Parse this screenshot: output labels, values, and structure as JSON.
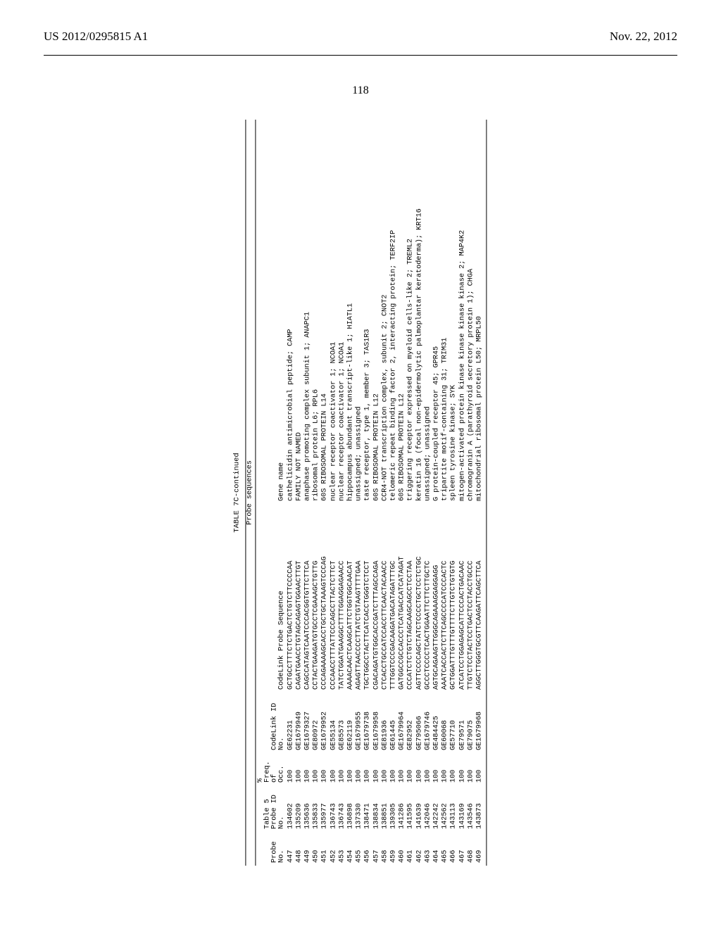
{
  "header": {
    "left": "US 2012/0295815 A1",
    "right": "Nov. 22, 2012",
    "page_number": "118"
  },
  "table": {
    "caption": "TABLE 7C-continued",
    "subtitle": "Probe sequences",
    "columns": {
      "probe_no": [
        "Probe",
        "No."
      ],
      "table5_probe_id": [
        "Table 5",
        "Probe ID",
        "No."
      ],
      "freq_pct": [
        "%",
        "Freq.",
        "of",
        "Occ."
      ],
      "codelink_id": [
        "CodeLink ID",
        "No."
      ],
      "codelink_seq": "CodeLink Probe Sequence",
      "gene_name": "Gene name"
    },
    "rows": [
      {
        "probe_no": 447,
        "t5": 134602,
        "freq": 100,
        "code": "GE62231",
        "seq": "GCTGCCTTTCTCTGACTCTGTCTTCCCCAA",
        "gene": "cathelicidin antimicrobial peptide; CAMP"
      },
      {
        "probe_no": 448,
        "t5": 135209,
        "freq": 100,
        "code": "GE1679949",
        "seq": "CAGATGAACCTGTAGCAGAGTGGAACTTGT",
        "gene": "FAMILY NOT NAMED"
      },
      {
        "probe_no": 449,
        "t5": 135636,
        "freq": 100,
        "code": "GE1679327",
        "seq": "CAGCCATAGTCAATCCCACGGTGTTCTTCA",
        "gene": "anaphase promoting complex subunit 1; ANAPC1"
      },
      {
        "probe_no": 450,
        "t5": 135833,
        "freq": 100,
        "code": "GE80972",
        "seq": "CCTACTGAAGATGTGCCTCGAAAGCTGTTG",
        "gene": "ribosomal protein L6; RPL6"
      },
      {
        "probe_no": 451,
        "t5": 135977,
        "freq": 100,
        "code": "GE1679952",
        "seq": "CCCAGAAAAGCACCTGCTGCTAAAGTCCCAG",
        "gene": "60S RIBOSOMAL PROTEIN L14"
      },
      {
        "probe_no": 452,
        "t5": 136743,
        "freq": 100,
        "code": "GE55134",
        "seq": "CCCAACCTTTATTCCCAGCCTTACTCTTCT",
        "gene": "nuclear receptor coactivator 1; NCOA1"
      },
      {
        "probe_no": 453,
        "t5": 136743,
        "freq": 100,
        "code": "GE85573",
        "seq": "TATCTGGATGAAGGCTTTTGGAGGAGAACC",
        "gene": "nuclear receptor coactivator 1; NCOA1"
      },
      {
        "probe_no": 454,
        "t5": 136898,
        "freq": 100,
        "code": "GE62119",
        "seq": "AAAACAACTCAAGCATTCTGGTGGCAACAT",
        "gene": "hippocampus abundant transcript-like 1; HIATL1"
      },
      {
        "probe_no": 455,
        "t5": 137330,
        "freq": 100,
        "code": "GE1679955",
        "seq": "AGAGTTAACCCCTTATCTGTAAGTTTTGAA",
        "gene": "unassigned; unassigned"
      },
      {
        "probe_no": 456,
        "t5": 138471,
        "freq": 100,
        "code": "GE1679738",
        "seq": "TGCTGGCCTACTTCATCACCTGGGTCTCCT",
        "gene": "taste receptor, type 1, member 3; TAS1R3"
      },
      {
        "probe_no": 457,
        "t5": 138834,
        "freq": 100,
        "code": "GE1679958",
        "seq": "CGACAGATGTGGCACCGATCTTTAGCCAGA",
        "gene": "60S RIBOSOMAL PROTEIN L12"
      },
      {
        "probe_no": 458,
        "t5": 138851,
        "freq": 100,
        "code": "GE81936",
        "seq": "CTCACCTGCCATCCACCTTCAACTACAACC",
        "gene": "CCR4-NOT transcription complex, subunit 2; CNOT2"
      },
      {
        "probe_no": 459,
        "t5": 139305,
        "freq": 100,
        "code": "GE61445",
        "seq": "TTTGGTCCCGACAAGATGACATAGATTTGC",
        "gene": "telomeric repeat binding factor 2, interacting protein; TERF2IP"
      },
      {
        "probe_no": 460,
        "t5": 141286,
        "freq": 100,
        "code": "GE1679964",
        "seq": "GATGGCCGCCACCCTCATGACCATCATAGAT",
        "gene": "60S RIBOSOMAL PROTEIN L12"
      },
      {
        "probe_no": 461,
        "t5": 141595,
        "freq": 100,
        "code": "GE82952",
        "seq": "CCCATCTCTGTCTAGCAAGCAGCCTCCTAA",
        "gene": "triggering receptor expressed on myeloid cells-like 2; TREML2"
      },
      {
        "probe_no": 462,
        "t5": 141639,
        "freq": 100,
        "code": "GE795066",
        "seq": "AGTTCCCCAGCTATCTCCCCTGCTCCTCTGC",
        "gene": "keratin 16 (focal non-epidermolytic palmoplantar keratoderma); KRT16"
      },
      {
        "probe_no": 463,
        "t5": 142046,
        "freq": 100,
        "code": "GE1679746",
        "seq": "GCCCTCCCCTCACTGGAATTCTTCTTGCTC",
        "gene": "unassigned; unassigned"
      },
      {
        "probe_no": 464,
        "t5": 142242,
        "freq": 100,
        "code": "GE484425",
        "seq": "AGTGCAGAAGTTGGGCAGAAAGGAGGAGG",
        "gene": "G protein-coupled receptor 45; GPR45"
      },
      {
        "probe_no": 465,
        "t5": 142562,
        "freq": 100,
        "code": "GE60068",
        "seq": "AAATCACCACTCTTCAGCCCCATCCCACTC",
        "gene": "tripartite motif-containing 31; TRIM31"
      },
      {
        "probe_no": 466,
        "t5": 143113,
        "freq": 100,
        "code": "GE57710",
        "seq": "GCTGGATTTGTTTGTTTTCTTGTCTGTGTG",
        "gene": "spleen tyrosine kinase; SYK"
      },
      {
        "probe_no": 467,
        "t5": 143169,
        "freq": 100,
        "code": "GE79571",
        "seq": "ATCATCCTGGAGAGCATTCCCACTGACAAC",
        "gene": "mitogen-activated protein kinase kinase kinase kinase 2; MAP4K2"
      },
      {
        "probe_no": 468,
        "t5": 143546,
        "freq": 100,
        "code": "GE79075",
        "seq": "TTGTCTCCTACTCCTGACTCCTACCTGCCC",
        "gene": "chromogranin A (parathyroid secretory protein 1); CHGA"
      },
      {
        "probe_no": 469,
        "t5": 143873,
        "freq": 100,
        "code": "GE1679968",
        "seq": "AGGCTTGGGTGCGTTCAAGATTCAGCTTCA",
        "gene": "mitochondrial ribosomal protein L50; MRPL50"
      }
    ]
  }
}
